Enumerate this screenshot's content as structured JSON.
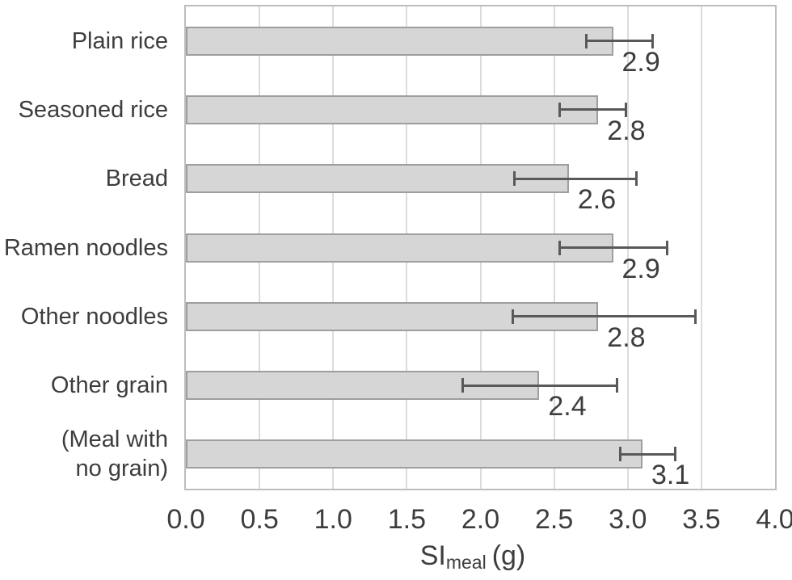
{
  "chart_data": {
    "type": "bar",
    "orientation": "horizontal",
    "title": "",
    "categories": [
      "Plain rice",
      "Seasoned rice",
      "Bread",
      "Ramen noodles",
      "Other noodles",
      "Other grain",
      "(Meal with\nno grain)"
    ],
    "values": [
      2.9,
      2.8,
      2.6,
      2.9,
      2.8,
      2.4,
      3.1
    ],
    "data_labels": [
      "2.9",
      "2.8",
      "2.6",
      "2.9",
      "2.8",
      "2.4",
      "3.1"
    ],
    "error_ranges": [
      [
        2.72,
        3.17
      ],
      [
        2.54,
        2.99
      ],
      [
        2.23,
        3.06
      ],
      [
        2.54,
        3.27
      ],
      [
        2.22,
        3.46
      ],
      [
        1.88,
        2.93
      ],
      [
        2.95,
        3.32
      ]
    ],
    "x_axis": {
      "min": 0,
      "max": 4,
      "tick_step": 0.5,
      "tick_labels": [
        "0.0",
        "0.5",
        "1.0",
        "1.5",
        "2.0",
        "2.5",
        "3.0",
        "3.5",
        "4.0"
      ]
    },
    "xlabel": {
      "main": "SI",
      "subscript": "meal",
      "unit": "(g)"
    },
    "grid": true,
    "legend": false,
    "colors": {
      "bar_fill": "#d6d6d6",
      "bar_border": "#9e9e9e",
      "error_bar": "#595959",
      "gridline": "#dcdcdc",
      "plot_border": "#bdbdbd",
      "text": "#3d3d3d"
    }
  }
}
